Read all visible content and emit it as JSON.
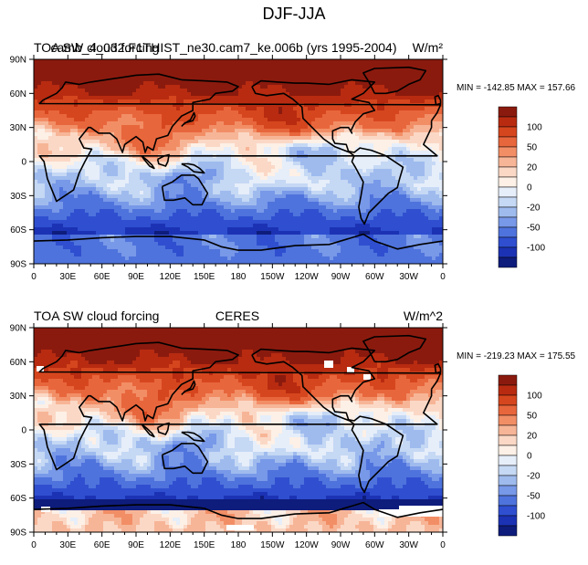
{
  "figure": {
    "title": "DJF-JJA"
  },
  "chart_data": [
    {
      "type": "heatmap",
      "title_left": "TOA SW cloud forcing",
      "title_center": "camb_4_032.F1THIST_ne30.cam7_ke.006b (yrs 1995-2004)",
      "units": "W/m²",
      "stats": "MIN = -142.85 MAX = 157.66",
      "min": -142.85,
      "max": 157.66,
      "x_ticks": [
        "0",
        "30E",
        "60E",
        "90E",
        "120E",
        "150E",
        "180",
        "150W",
        "120W",
        "90W",
        "60W",
        "30W",
        "0"
      ],
      "y_ticks": [
        "90N",
        "60N",
        "30N",
        "0",
        "30S",
        "60S",
        "90S"
      ],
      "xlim": [
        0,
        360
      ],
      "ylim": [
        -90,
        90
      ],
      "colorbar_labels": [
        "100",
        "50",
        "20",
        "0",
        "-20",
        "-50",
        "-100"
      ]
    },
    {
      "type": "heatmap",
      "title_left": "TOA SW cloud forcing",
      "title_center": "CERES",
      "units": "W/m^2",
      "stats": "MIN = -219.23 MAX = 175.55",
      "min": -219.23,
      "max": 175.55,
      "x_ticks": [
        "0",
        "30E",
        "60E",
        "90E",
        "120E",
        "150E",
        "180",
        "150W",
        "120W",
        "90W",
        "60W",
        "30W",
        "0"
      ],
      "y_ticks": [
        "90N",
        "60N",
        "30N",
        "0",
        "30S",
        "60S",
        "90S"
      ],
      "xlim": [
        0,
        360
      ],
      "ylim": [
        -90,
        90
      ],
      "colorbar_labels": [
        "100",
        "50",
        "20",
        "0",
        "-20",
        "-50",
        "-100"
      ]
    }
  ],
  "colors": [
    "#8b1a0e",
    "#b82b10",
    "#d6461e",
    "#e8663c",
    "#f28e66",
    "#f7b597",
    "#fbd8c6",
    "#fdf0e6",
    "#e6eefa",
    "#c5d8f4",
    "#9fbbee",
    "#7898e8",
    "#4f73dc",
    "#2f4fd0",
    "#1c32b4",
    "#0e1c7c"
  ]
}
